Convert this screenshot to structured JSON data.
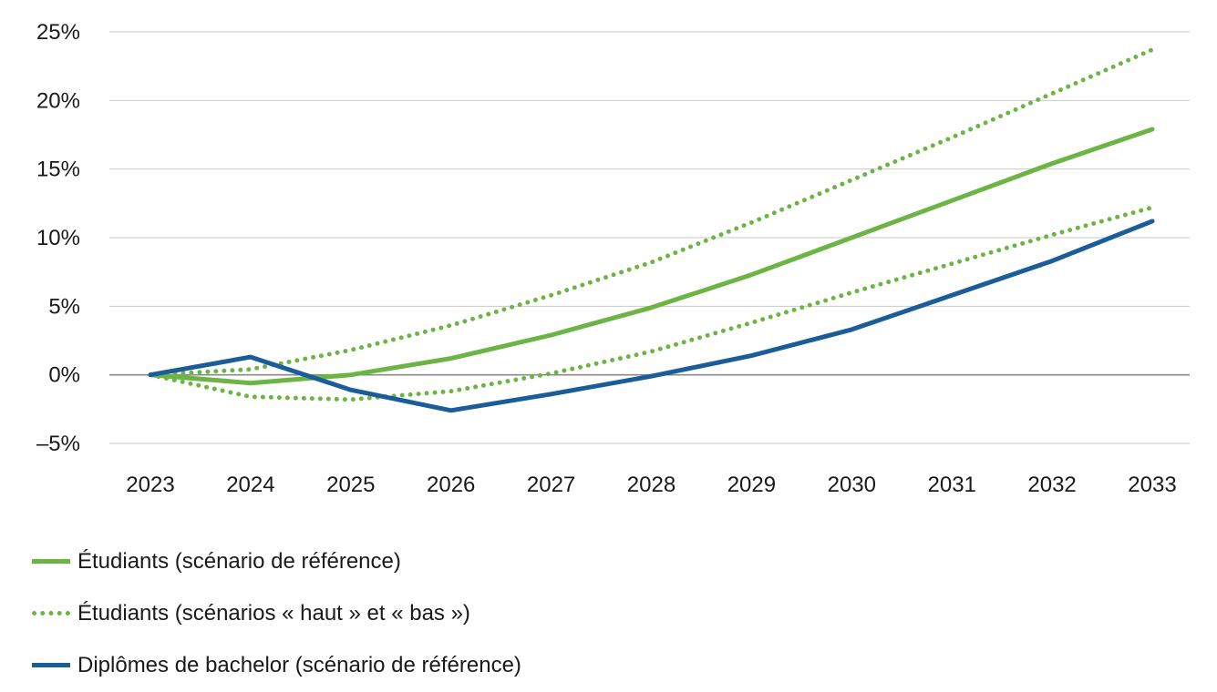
{
  "chart_data": {
    "type": "line",
    "title": "",
    "xlabel": "",
    "ylabel": "",
    "categories": [
      "2023",
      "2024",
      "2025",
      "2026",
      "2027",
      "2028",
      "2029",
      "2030",
      "2031",
      "2032",
      "2033"
    ],
    "ylim": [
      -5,
      25
    ],
    "yticks": [
      -5,
      0,
      5,
      10,
      15,
      20,
      25
    ],
    "ytick_labels": [
      "–5%",
      "0%",
      "5%",
      "10%",
      "15%",
      "20%",
      "25%"
    ],
    "grid": true,
    "legend_position": "bottom",
    "series": [
      {
        "name": "Étudiants (scénario de référence)",
        "style": "solid",
        "color": "#6cb545",
        "values": [
          0,
          -0.6,
          0,
          1.2,
          2.9,
          4.9,
          7.3,
          10.0,
          12.7,
          15.4,
          17.9
        ]
      },
      {
        "name": "Étudiants (scénarios « haut » et « bas »)",
        "style": "dotted",
        "color": "#6cb545",
        "values": [
          0,
          0.4,
          1.8,
          3.6,
          5.8,
          8.2,
          11.1,
          14.2,
          17.3,
          20.5,
          23.7
        ]
      },
      {
        "name": "",
        "legend_group": "Étudiants (scénarios « haut » et « bas »)",
        "style": "dotted",
        "color": "#6cb545",
        "values": [
          0,
          -1.6,
          -1.8,
          -1.2,
          0.1,
          1.7,
          3.8,
          6.0,
          8.1,
          10.2,
          12.2
        ]
      },
      {
        "name": "Diplômes de bachelor (scénario de référence)",
        "style": "solid",
        "color": "#1b5d99",
        "values": [
          0,
          1.3,
          -1.1,
          -2.6,
          -1.4,
          -0.1,
          1.4,
          3.3,
          5.8,
          8.3,
          11.2
        ]
      }
    ]
  },
  "colors": {
    "grid": "#c8c8c8",
    "zero_line": "#8a8a8a"
  },
  "legend": [
    {
      "label": "Étudiants (scénario de référence)",
      "style": "solid",
      "color": "#6cb545"
    },
    {
      "label": "Étudiants (scénarios « haut » et « bas »)",
      "style": "dotted",
      "color": "#6cb545"
    },
    {
      "label": "Diplômes de bachelor (scénario de référence)",
      "style": "solid",
      "color": "#1b5d99"
    }
  ]
}
